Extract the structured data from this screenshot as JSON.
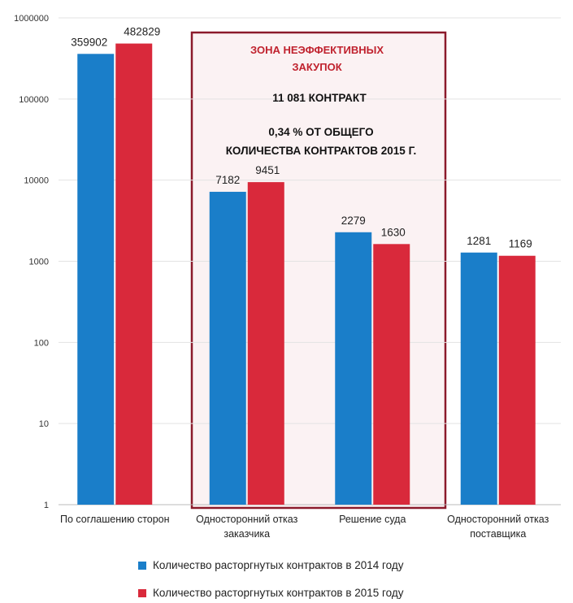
{
  "chart_data": {
    "type": "bar",
    "scale": "log",
    "ylim": [
      1,
      1000000
    ],
    "yticks": [
      "1",
      "10",
      "100",
      "1000",
      "10000",
      "100000",
      "1000000"
    ],
    "categories": [
      [
        "По соглашению сторон"
      ],
      [
        "Односторонний отказ",
        "заказчика"
      ],
      [
        "Решение суда"
      ],
      [
        "Односторонний отказ",
        "поставщика"
      ]
    ],
    "series": [
      {
        "name": "Количество расторгнутых контрактов в 2014 году",
        "color": "#1a7ec9",
        "values": [
          359902,
          7182,
          2279,
          1281
        ]
      },
      {
        "name": "Количество расторгнутых контрактов в 2015 году",
        "color": "#d9293b",
        "values": [
          482829,
          9451,
          1630,
          1169
        ]
      }
    ],
    "annotation": {
      "title_lines": [
        "ЗОНА НЕЭФФЕКТИВНЫХ",
        "ЗАКУПОК"
      ],
      "count_text": "11 081  КОНТРАКТ",
      "share_lines": [
        "0,34 % ОТ ОБЩЕГО",
        "КОЛИЧЕСТВА КОНТРАКТОВ 2015 Г."
      ],
      "border_color": "#8b1a2b",
      "fill_color": "#fbf2f3"
    },
    "legend_position": "bottom"
  }
}
